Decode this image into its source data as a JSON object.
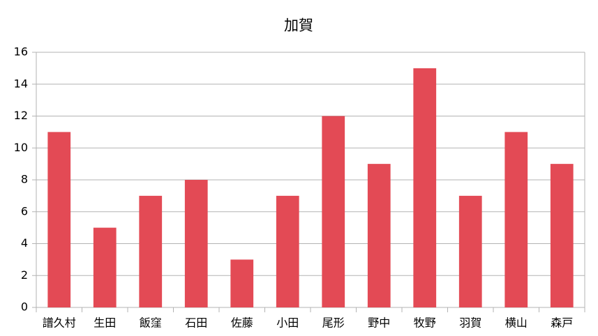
{
  "chart_data": {
    "type": "bar",
    "title": "加賀",
    "categories": [
      "譜久村",
      "生田",
      "飯窪",
      "石田",
      "佐藤",
      "小田",
      "尾形",
      "野中",
      "牧野",
      "羽賀",
      "横山",
      "森戸"
    ],
    "values": [
      11,
      5,
      7,
      8,
      3,
      7,
      12,
      9,
      15,
      7,
      11,
      9
    ],
    "color": "#e34a55",
    "ylim": [
      0,
      16
    ],
    "yticks": [
      0,
      2,
      4,
      6,
      8,
      10,
      12,
      14,
      16
    ],
    "grid": true
  }
}
